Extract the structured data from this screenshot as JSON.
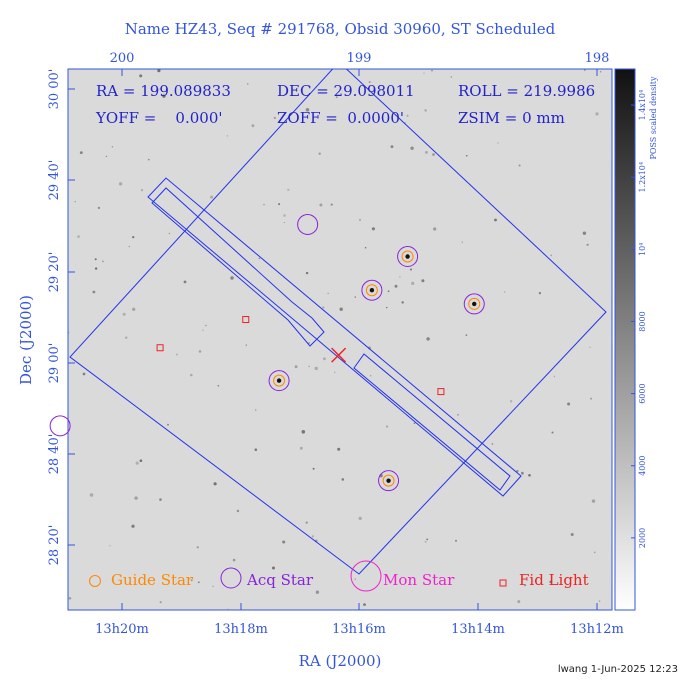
{
  "chart_data": {
    "type": "scatter",
    "title": "Name HZ43, Seq # 291768, Obsid 30960, ST Scheduled",
    "info": {
      "ra": "RA = 199.089833",
      "dec": "DEC = 29.098011",
      "roll": "ROLL = 219.9986",
      "yoff": "YOFF =    0.000'",
      "zoff": "ZOFF =  0.0000'",
      "zsim": "ZSIM = 0 mm"
    },
    "xlabel": "RA (J2000)",
    "ylabel": "Dec (J2000)",
    "x_ticks_bottom": [
      "13h20m",
      "13h18m",
      "13h16m",
      "13h14m",
      "13h12m"
    ],
    "x_ticks_top": [
      "200",
      "199",
      "198"
    ],
    "y_ticks": [
      "30 00'",
      "29 40'",
      "29 20'",
      "29 00'",
      "28 40'",
      "28 20'"
    ],
    "colorbar": {
      "label": "POSS scaled density",
      "ticks": [
        "2000",
        "4000",
        "6000",
        "8000",
        "10⁴",
        "1.2x10⁴",
        "1.4x10⁴"
      ],
      "range": [
        0,
        15000
      ]
    },
    "guide_stars": [
      {
        "ra_min_offset": 0,
        "dec_arcmin": 0
      }
    ],
    "acq_stars": [
      {
        "ra_deg": 199.22,
        "dec_deg": 29.575
      },
      {
        "ra_deg": 198.8,
        "dec_deg": 29.458
      },
      {
        "ra_deg": 198.52,
        "dec_deg": 29.285
      },
      {
        "ra_deg": 198.95,
        "dec_deg": 29.335
      },
      {
        "ra_deg": 199.34,
        "dec_deg": 29.005
      },
      {
        "ra_deg": 200.26,
        "dec_deg": 28.84
      },
      {
        "ra_deg": 198.88,
        "dec_deg": 28.64
      }
    ],
    "guide_star_positions": [
      {
        "ra_deg": 198.8,
        "dec_deg": 29.458
      },
      {
        "ra_deg": 198.52,
        "dec_deg": 29.285
      },
      {
        "ra_deg": 198.95,
        "dec_deg": 29.335
      },
      {
        "ra_deg": 199.34,
        "dec_deg": 29.005
      },
      {
        "ra_deg": 198.88,
        "dec_deg": 28.64
      }
    ],
    "fid_lights": [
      {
        "ra_deg": 199.48,
        "dec_deg": 29.228
      },
      {
        "ra_deg": 199.84,
        "dec_deg": 29.125
      },
      {
        "ra_deg": 198.66,
        "dec_deg": 28.965
      }
    ],
    "target": {
      "ra_deg": 199.089833,
      "dec_deg": 29.098011
    },
    "legend": [
      {
        "label": "Guide Star",
        "color": "#ff8800"
      },
      {
        "label": "Acq Star",
        "color": "#8822dd"
      },
      {
        "label": "Mon Star",
        "color": "#ee22cc"
      },
      {
        "label": "Fid Light",
        "color": "#ee2222"
      }
    ],
    "footer": "lwang  1-Jun-2025 12:23"
  }
}
